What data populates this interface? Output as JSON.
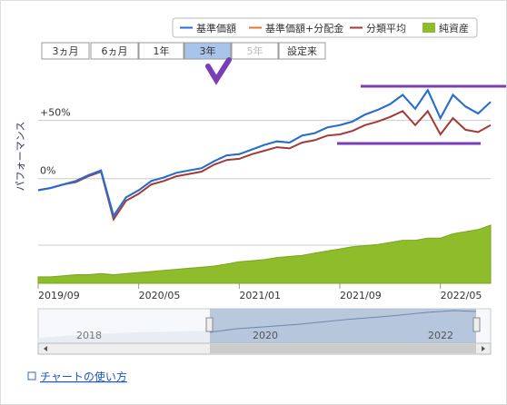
{
  "range_buttons": [
    "3ヵ月",
    "6ヵ月",
    "1年",
    "3年",
    "5年",
    "設定来"
  ],
  "navigator_labels": [
    "2018",
    "2020",
    "2022"
  ],
  "help_link": "チャートの使い方",
  "chart_data": {
    "type": "line",
    "y_label": "パフォーマンス",
    "x": [
      "2019/09",
      "2019/10",
      "2019/11",
      "2019/12",
      "2020/01",
      "2020/02",
      "2020/03",
      "2020/04",
      "2020/05",
      "2020/06",
      "2020/07",
      "2020/08",
      "2020/09",
      "2020/10",
      "2020/11",
      "2020/12",
      "2021/01",
      "2021/02",
      "2021/03",
      "2021/04",
      "2021/05",
      "2021/06",
      "2021/07",
      "2021/08",
      "2021/09",
      "2021/10",
      "2021/11",
      "2021/12",
      "2022/01",
      "2022/02",
      "2022/03",
      "2022/04",
      "2022/05",
      "2022/06",
      "2022/07",
      "2022/08",
      "2022/09"
    ],
    "xticks": [
      "2019/09",
      "2020/05",
      "2021/01",
      "2021/09",
      "2022/05"
    ],
    "ylim": [
      -90,
      95
    ],
    "yticks": [
      {
        "value": 0,
        "label": "0%"
      },
      {
        "value": 50,
        "label": "+50%"
      }
    ],
    "y2lim": [
      0,
      100
    ],
    "grid": true,
    "legend": "top-right",
    "series": [
      {
        "name": "純資産",
        "color": "#8fbc2b",
        "axis": "y2",
        "kind": "area",
        "values": [
          3,
          3,
          3.5,
          4,
          4,
          4.5,
          4,
          4.5,
          5,
          5.5,
          6,
          6.5,
          7,
          7.5,
          8,
          9,
          10,
          10.5,
          11,
          12,
          12.5,
          13,
          14,
          15,
          16,
          17,
          17.5,
          18,
          19,
          20,
          20,
          21,
          21,
          23,
          24,
          25,
          27
        ]
      },
      {
        "name": "分類平均",
        "color": "#a33a3a",
        "values": [
          -10,
          -8,
          -5,
          -3,
          2,
          6,
          -35,
          -19,
          -13,
          -5,
          -2,
          2,
          4,
          6,
          12,
          16,
          17,
          21,
          24,
          27,
          26,
          31,
          33,
          37,
          38,
          41,
          46,
          49,
          53,
          58,
          46,
          58,
          38,
          52,
          42,
          40,
          46
        ]
      },
      {
        "name": "基準価額+分配金",
        "color": "#e8742a",
        "values": [
          -10,
          -8,
          -5,
          -2,
          3,
          7,
          -32,
          -16,
          -10,
          -2,
          1,
          5,
          7,
          9,
          15,
          20,
          21,
          25,
          29,
          32,
          31,
          37,
          39,
          44,
          46,
          49,
          55,
          59,
          64,
          72,
          60,
          76,
          52,
          72,
          62,
          56,
          66
        ]
      },
      {
        "name": "基準価額",
        "color": "#1f6fd8",
        "values": [
          -10,
          -8,
          -5,
          -2,
          3,
          7,
          -32,
          -16,
          -10,
          -2,
          1,
          5,
          7,
          9,
          15,
          20,
          21,
          25,
          29,
          32,
          31,
          37,
          39,
          44,
          46,
          49,
          55,
          59,
          64,
          72,
          60,
          76,
          52,
          72,
          62,
          56,
          66
        ]
      }
    ]
  }
}
